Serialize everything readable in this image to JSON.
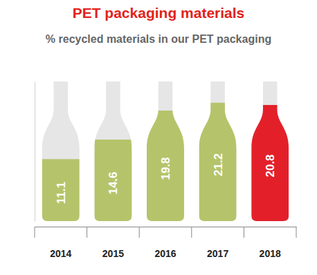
{
  "chart_data": {
    "type": "bar",
    "title": "PET packaging materials",
    "subtitle": "% recycled materials in our PET packaging",
    "categories": [
      "2014",
      "2015",
      "2016",
      "2017",
      "2018"
    ],
    "values": [
      11.1,
      14.6,
      19.8,
      21.2,
      20.8
    ],
    "colors": [
      "#b5c46a",
      "#b5c46a",
      "#b5c46a",
      "#b5c46a",
      "#e3202a"
    ],
    "ylim": [
      0,
      25
    ],
    "data_labels": true,
    "tick_labels": "x"
  }
}
